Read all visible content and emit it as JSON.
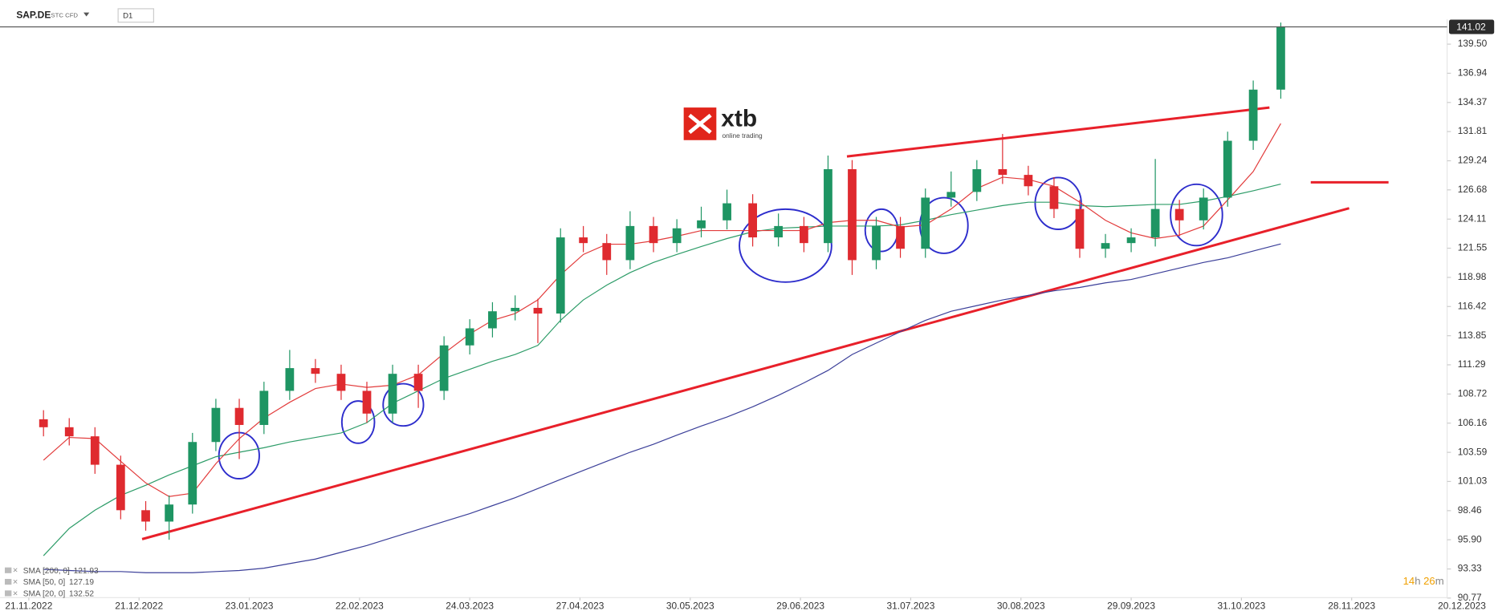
{
  "header": {
    "symbol": "SAP.DE",
    "instrument": "STC CFD",
    "interval": "D1"
  },
  "logo": {
    "brand": "xtb",
    "tagline": "online trading"
  },
  "timer": {
    "hours": 14,
    "hours_unit": "h",
    "minutes": 26,
    "minutes_unit": "m"
  },
  "chart_data": {
    "type": "candlestick",
    "up_color": "#1e9563",
    "down_color": "#df2a2f",
    "last_price": 141.02,
    "x": [
      "25.11.2022",
      "02.12.2022",
      "09.12.2022",
      "16.12.2022",
      "23.12.2022",
      "30.12.2022",
      "06.01.2023",
      "13.01.2023",
      "20.01.2023",
      "27.01.2023",
      "03.02.2023",
      "10.02.2023",
      "17.02.2023",
      "24.02.2023",
      "03.03.2023",
      "10.03.2023",
      "17.03.2023",
      "24.03.2023",
      "31.03.2023",
      "07.04.2023",
      "14.04.2023",
      "21.04.2023",
      "28.04.2023",
      "05.05.2023",
      "12.05.2023",
      "19.05.2023",
      "26.05.2023",
      "02.06.2023",
      "09.06.2023",
      "16.06.2023",
      "23.06.2023",
      "30.06.2023",
      "07.07.2023",
      "14.07.2023",
      "21.07.2023",
      "28.07.2023",
      "04.08.2023",
      "11.08.2023",
      "18.08.2023",
      "25.08.2023",
      "01.09.2023",
      "08.09.2023",
      "15.09.2023",
      "22.09.2023",
      "29.09.2023",
      "06.10.2023",
      "13.10.2023",
      "20.10.2023",
      "27.10.2023",
      "03.11.2023",
      "10.11.2023"
    ],
    "open": [
      106.5,
      105.8,
      105.0,
      102.5,
      98.5,
      97.5,
      99.0,
      104.5,
      107.5,
      106.0,
      109.0,
      111.0,
      110.5,
      109.0,
      107.0,
      110.5,
      109.0,
      113.0,
      114.5,
      116.0,
      116.3,
      115.8,
      122.5,
      122.0,
      120.5,
      123.5,
      122.0,
      123.3,
      124.0,
      125.5,
      122.5,
      123.5,
      122.0,
      128.5,
      120.5,
      123.5,
      121.5,
      126.0,
      126.5,
      128.5,
      128.0,
      127.0,
      125.0,
      121.5,
      122.0,
      122.5,
      125.0,
      124.0,
      126.0,
      131.0,
      135.5
    ],
    "high": [
      107.3,
      106.6,
      105.8,
      103.3,
      99.3,
      99.8,
      105.3,
      108.3,
      108.3,
      109.8,
      112.6,
      111.8,
      111.3,
      109.8,
      111.3,
      111.3,
      113.8,
      115.3,
      116.8,
      117.4,
      117.1,
      123.3,
      123.5,
      122.8,
      124.8,
      124.3,
      124.1,
      125.2,
      126.7,
      126.3,
      124.6,
      124.3,
      129.7,
      129.3,
      124.3,
      124.3,
      126.8,
      128.3,
      129.3,
      131.6,
      128.8,
      127.8,
      125.8,
      122.8,
      123.3,
      129.4,
      125.8,
      126.8,
      131.8,
      136.3,
      141.4
    ],
    "low": [
      105.0,
      104.2,
      101.7,
      97.7,
      96.7,
      95.9,
      98.2,
      103.7,
      103.0,
      105.2,
      108.2,
      109.7,
      108.2,
      106.2,
      106.2,
      107.5,
      108.2,
      112.2,
      113.7,
      115.2,
      113.2,
      115.0,
      121.2,
      119.2,
      119.7,
      121.2,
      121.2,
      122.5,
      123.2,
      121.7,
      121.7,
      121.2,
      121.2,
      119.2,
      119.7,
      120.7,
      120.7,
      125.2,
      125.7,
      127.2,
      126.2,
      124.2,
      120.7,
      120.7,
      121.2,
      121.7,
      122.6,
      123.2,
      125.2,
      130.2,
      134.7
    ],
    "close": [
      105.8,
      105.0,
      102.5,
      98.5,
      97.5,
      99.0,
      104.5,
      107.5,
      106.0,
      109.0,
      111.0,
      110.5,
      109.0,
      107.0,
      110.5,
      109.0,
      113.0,
      114.5,
      116.0,
      116.3,
      115.8,
      122.5,
      122.0,
      120.5,
      123.5,
      122.0,
      123.3,
      124.0,
      125.5,
      122.5,
      123.5,
      122.0,
      128.5,
      120.5,
      123.5,
      121.5,
      126.0,
      126.5,
      128.5,
      128.0,
      127.0,
      125.0,
      121.5,
      122.0,
      122.5,
      125.0,
      124.0,
      126.0,
      131.0,
      135.5,
      141.0
    ],
    "series": [
      {
        "name": "SMA [200, 0]",
        "legend_value": 121.93,
        "color": "#3b3f99",
        "values": [
          93.3,
          93.2,
          93.1,
          93.1,
          93.0,
          93.0,
          93.0,
          93.1,
          93.2,
          93.4,
          93.8,
          94.2,
          94.8,
          95.4,
          96.1,
          96.8,
          97.5,
          98.2,
          98.9,
          99.6,
          100.4,
          101.2,
          102.0,
          102.8,
          103.6,
          104.3,
          105.1,
          105.9,
          106.7,
          107.6,
          108.6,
          109.7,
          110.8,
          112.2,
          113.2,
          114.2,
          115.2,
          116.0,
          116.5,
          117.0,
          117.4,
          117.8,
          118.1,
          118.5,
          118.8,
          119.3,
          119.8,
          120.3,
          120.7,
          121.3,
          121.93
        ]
      },
      {
        "name": "SMA [50, 0]",
        "legend_value": 127.19,
        "color": "#2d9c68",
        "values": [
          94.5,
          96.9,
          98.5,
          99.8,
          100.7,
          101.6,
          102.4,
          103.2,
          103.6,
          104.0,
          104.5,
          104.9,
          105.3,
          106.2,
          107.9,
          109.0,
          110.1,
          110.9,
          111.6,
          112.2,
          113.0,
          115.2,
          117.0,
          118.3,
          119.4,
          120.3,
          121.0,
          121.7,
          122.4,
          123.0,
          123.3,
          123.4,
          123.5,
          123.5,
          123.5,
          123.6,
          124.0,
          124.5,
          124.9,
          125.3,
          125.6,
          125.6,
          125.3,
          125.2,
          125.3,
          125.4,
          125.4,
          125.7,
          126.1,
          126.6,
          127.19
        ]
      },
      {
        "name": "SMA [20, 0]",
        "legend_value": 132.52,
        "color": "#e23b3b",
        "values": [
          102.9,
          104.9,
          104.8,
          102.8,
          100.9,
          99.7,
          100.0,
          102.6,
          104.8,
          106.6,
          108.0,
          109.2,
          109.6,
          109.3,
          109.5,
          110.4,
          112.3,
          114.0,
          115.2,
          115.8,
          117.0,
          119.2,
          121.0,
          121.9,
          121.9,
          122.2,
          122.6,
          123.1,
          123.1,
          123.1,
          123.1,
          123.1,
          123.8,
          124.0,
          124.0,
          123.4,
          123.6,
          125.0,
          126.8,
          127.8,
          127.6,
          127.0,
          125.6,
          124.0,
          122.9,
          122.4,
          122.7,
          123.5,
          125.8,
          128.3,
          132.52
        ]
      }
    ],
    "ylim": [
      90.64,
      142.7
    ],
    "yticks": [
      {
        "value": 139.5,
        "label": "139.50"
      },
      136.94,
      134.37,
      131.81,
      129.24,
      126.68,
      124.11,
      121.55,
      118.98,
      116.42,
      113.85,
      111.29,
      108.72,
      106.16,
      103.59,
      101.03,
      98.46,
      {
        "value": 95.9,
        "label": "95.90"
      },
      93.33,
      90.77
    ],
    "xticks": [
      "21.11.2022",
      "21.12.2022",
      "23.01.2023",
      "22.02.2023",
      "24.03.2023",
      "27.04.2023",
      "30.05.2023",
      "29.06.2023",
      "31.07.2023",
      "30.08.2023",
      "29.09.2023",
      "31.10.2023",
      "28.11.2023",
      "20.12.2023"
    ]
  }
}
